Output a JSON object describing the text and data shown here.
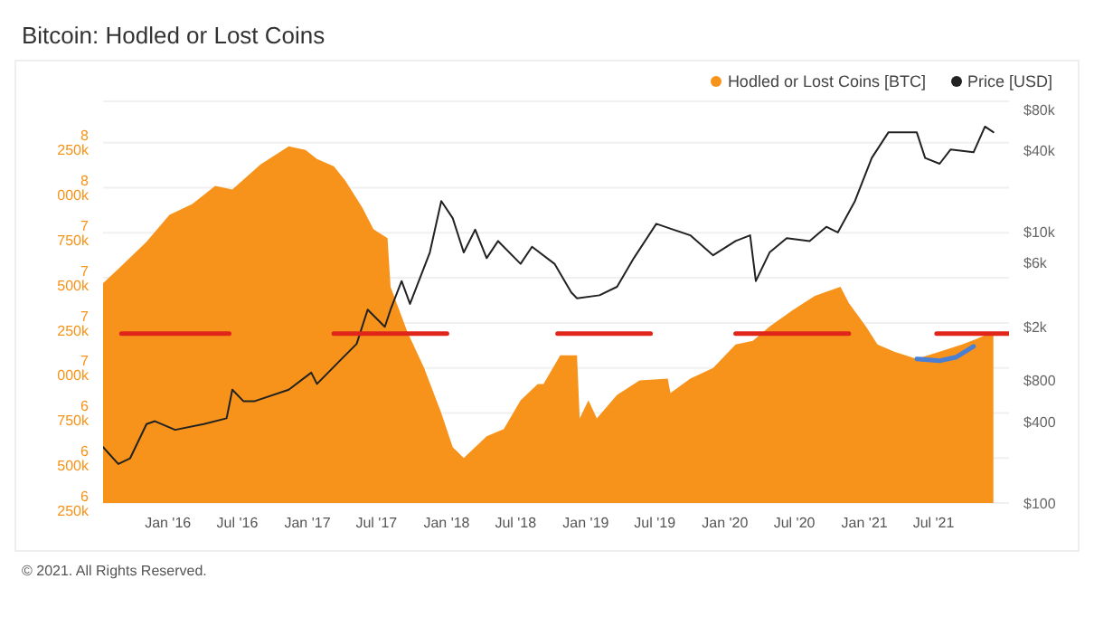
{
  "chart_data": {
    "type": "area",
    "title": "Bitcoin: Hodled or Lost Coins",
    "xlim": [
      "2015-07-15",
      "2022-01-15"
    ],
    "xticks": [
      {
        "value": "2016-01-01",
        "label": "Jan '16"
      },
      {
        "value": "2016-07-01",
        "label": "Jul '16"
      },
      {
        "value": "2017-01-01",
        "label": "Jan '17"
      },
      {
        "value": "2017-07-01",
        "label": "Jul '17"
      },
      {
        "value": "2018-01-01",
        "label": "Jan '18"
      },
      {
        "value": "2018-07-01",
        "label": "Jul '18"
      },
      {
        "value": "2019-01-01",
        "label": "Jan '19"
      },
      {
        "value": "2019-07-01",
        "label": "Jul '19"
      },
      {
        "value": "2020-01-01",
        "label": "Jan '20"
      },
      {
        "value": "2020-07-01",
        "label": "Jul '20"
      },
      {
        "value": "2021-01-01",
        "label": "Jan '21"
      },
      {
        "value": "2021-07-01",
        "label": "Jul '21"
      }
    ],
    "ylim": [
      6250000,
      8480000
    ],
    "yticks": [
      {
        "value": 6250000,
        "label": "6 250k"
      },
      {
        "value": 6500000,
        "label": "6 500k"
      },
      {
        "value": 6750000,
        "label": "6 750k"
      },
      {
        "value": 7000000,
        "label": "7 000k"
      },
      {
        "value": 7250000,
        "label": "7 250k"
      },
      {
        "value": 7500000,
        "label": "7 500k"
      },
      {
        "value": 7750000,
        "label": "7 750k"
      },
      {
        "value": 8000000,
        "label": "8 000k"
      },
      {
        "value": 8250000,
        "label": "8 250k"
      }
    ],
    "y2lim": [
      100,
      92500
    ],
    "y2ticks": [
      {
        "value": 100,
        "label": "$100"
      },
      {
        "value": 400,
        "label": "$400"
      },
      {
        "value": 800,
        "label": "$800"
      },
      {
        "value": 2000,
        "label": "$2k"
      },
      {
        "value": 6000,
        "label": "$6k"
      },
      {
        "value": 10000,
        "label": "$10k"
      },
      {
        "value": 40000,
        "label": "$40k"
      },
      {
        "value": 80000,
        "label": "$80k"
      }
    ],
    "log": "y2",
    "grid": "y",
    "legend": "top right",
    "series": [
      {
        "name": "Hodled or Lost Coins [BTC]",
        "color": "#f7931a",
        "x": [
          "2015-07-15",
          "2015-08-24",
          "2015-11-06",
          "2016-01-05",
          "2016-03-05",
          "2016-05-04",
          "2016-06-18",
          "2016-08-31",
          "2016-11-13",
          "2016-12-27",
          "2017-01-26",
          "2017-03-11",
          "2017-04-10",
          "2017-05-25",
          "2017-06-23",
          "2017-07-30",
          "2017-08-07",
          "2017-09-20",
          "2017-11-03",
          "2017-12-18",
          "2018-01-17",
          "2018-02-15",
          "2018-04-16",
          "2018-05-31",
          "2018-07-14",
          "2018-08-28",
          "2018-09-12",
          "2018-10-26",
          "2018-12-09",
          "2018-12-16",
          "2019-01-08",
          "2019-01-30",
          "2019-03-24",
          "2019-05-22",
          "2019-08-04",
          "2019-08-11",
          "2019-10-02",
          "2019-12-01",
          "2020-01-29",
          "2020-03-14",
          "2020-04-27",
          "2020-06-26",
          "2020-08-24",
          "2020-10-30",
          "2020-11-21",
          "2021-01-05",
          "2021-02-04",
          "2021-03-20",
          "2021-05-18",
          "2021-07-17",
          "2021-09-14",
          "2021-10-21",
          "2021-12-05"
        ],
        "values": [
          7470000,
          7550000,
          7700000,
          7850000,
          7910000,
          8010000,
          7990000,
          8130000,
          8230000,
          8210000,
          8160000,
          8120000,
          8040000,
          7890000,
          7770000,
          7720000,
          7450000,
          7200000,
          7000000,
          6750000,
          6560000,
          6500000,
          6620000,
          6660000,
          6820000,
          6910000,
          6910000,
          7070000,
          7070000,
          6720000,
          6820000,
          6720000,
          6850000,
          6930000,
          6940000,
          6860000,
          6940000,
          7000000,
          7130000,
          7150000,
          7230000,
          7320000,
          7400000,
          7450000,
          7360000,
          7230000,
          7130000,
          7090000,
          7050000,
          7090000,
          7130000,
          7160000,
          7200000
        ]
      },
      {
        "name": "Price [USD]",
        "type": "line",
        "axis": "y2",
        "color": "#222222",
        "x": [
          "2015-07-15",
          "2015-08-24",
          "2015-09-24",
          "2015-11-06",
          "2015-11-28",
          "2016-01-20",
          "2016-04-04",
          "2016-06-03",
          "2016-06-18",
          "2016-07-17",
          "2016-08-16",
          "2016-11-13",
          "2017-01-11",
          "2017-01-26",
          "2017-03-26",
          "2017-05-10",
          "2017-06-08",
          "2017-07-23",
          "2017-08-07",
          "2017-09-05",
          "2017-09-27",
          "2017-11-18",
          "2017-12-18",
          "2018-01-17",
          "2018-02-15",
          "2018-03-17",
          "2018-04-16",
          "2018-05-16",
          "2018-07-14",
          "2018-08-13",
          "2018-10-11",
          "2018-11-24",
          "2018-12-09",
          "2019-02-06",
          "2019-03-24",
          "2019-05-07",
          "2019-07-05",
          "2019-08-19",
          "2019-10-02",
          "2019-12-01",
          "2020-01-29",
          "2020-03-07",
          "2020-03-22",
          "2020-04-27",
          "2020-06-11",
          "2020-08-10",
          "2020-09-23",
          "2020-10-23",
          "2020-12-07",
          "2021-01-20",
          "2021-03-05",
          "2021-05-18",
          "2021-06-09",
          "2021-07-17",
          "2021-08-15",
          "2021-10-14",
          "2021-11-13",
          "2021-12-05"
        ],
        "values": [
          259,
          194,
          214,
          383,
          402,
          347,
          383,
          422,
          687,
          565,
          565,
          687,
          918,
          757,
          1117,
          1496,
          2680,
          2000,
          2680,
          4354,
          2951,
          7080,
          16980,
          12700,
          7080,
          10440,
          6430,
          8600,
          5840,
          7810,
          5840,
          3590,
          3250,
          3420,
          3950,
          6430,
          11530,
          10440,
          9480,
          6750,
          8600,
          9480,
          4354,
          7080,
          9040,
          8600,
          10960,
          9950,
          16980,
          35300,
          54700,
          54700,
          35300,
          32000,
          40800,
          38900,
          60200,
          54700
        ]
      },
      {
        "type": "line",
        "color": "#e0261a",
        "x": [
          "2015-09-01",
          "2016-06-10",
          "2016-06-11",
          "2017-03-11",
          "2018-01-02",
          "2018-01-03",
          "2018-10-19",
          "2019-06-20",
          "2019-06-21",
          "2020-01-29",
          "2020-11-21",
          "2020-11-22",
          "2021-07-09",
          "2022-01-15"
        ],
        "values": [
          7190000,
          7190000,
          null,
          7190000,
          7190000,
          null,
          7190000,
          7190000,
          null,
          7190000,
          7190000,
          null,
          7190000,
          7190000
        ]
      },
      {
        "type": "line",
        "color": "#4a7fd4",
        "x": [
          "2021-05-18",
          "2021-07-17",
          "2021-08-30",
          "2021-10-14"
        ],
        "values": [
          7050000,
          7040000,
          7060000,
          7120000
        ]
      }
    ],
    "annotations": [
      "© 2021. All Rights Reserved."
    ]
  }
}
